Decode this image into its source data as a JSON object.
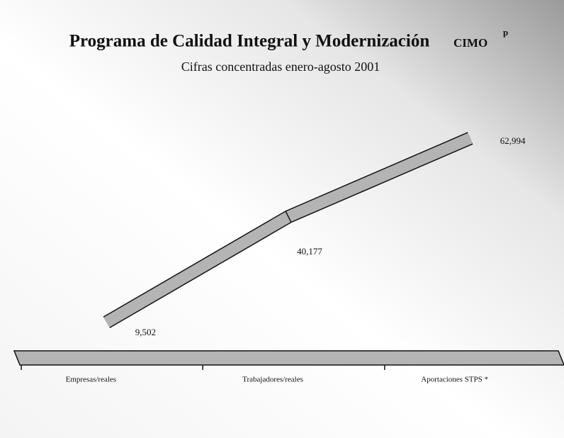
{
  "chart_data": {
    "type": "line3d",
    "title": "Programa de Calidad Integral y Modernización",
    "badge": "CIMO",
    "badge_superscript": "p",
    "subtitle": "Cifras concentradas enero-agosto 2001",
    "categories": [
      "Empresas/reales",
      "Trabajadores/reales",
      "Aportaciones STPS *"
    ],
    "values": [
      9502,
      40177,
      62994
    ],
    "value_labels": [
      "9,502",
      "40,177",
      "62,994"
    ],
    "color": "#b4b4b4"
  }
}
